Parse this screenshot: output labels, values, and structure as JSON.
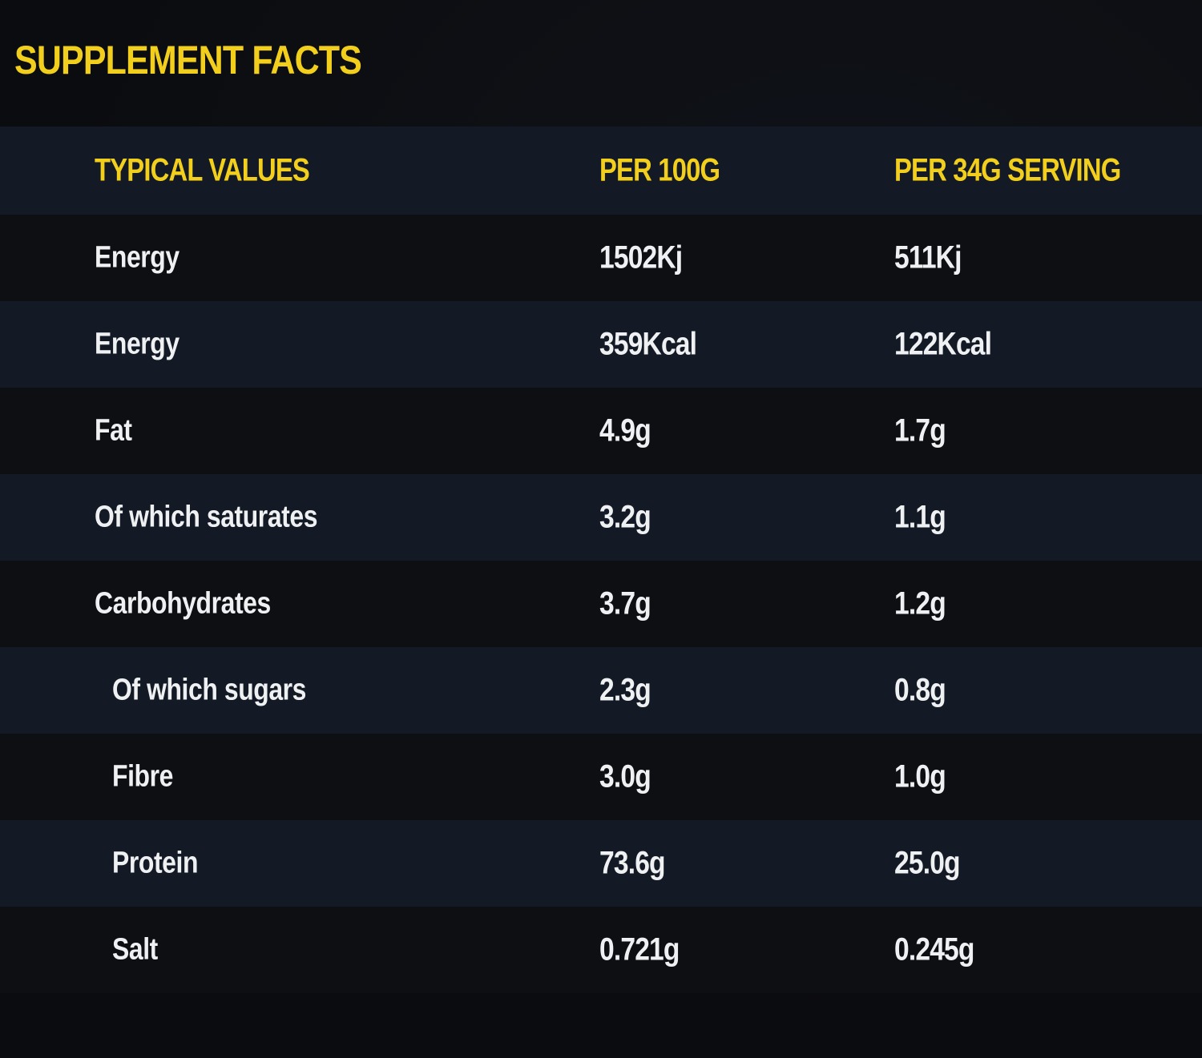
{
  "title": "SUPPLEMENT FACTS",
  "colors": {
    "accent": "#f2cf1d",
    "text": "#eef0f2",
    "band": "#131a26",
    "background": "#0c0d10"
  },
  "headers": {
    "label": "TYPICAL VALUES",
    "per100": "PER 100G",
    "perServing": "PER 34G SERVING"
  },
  "rows": [
    {
      "label": "Energy",
      "per100": "1502Kj",
      "perServing": "511Kj"
    },
    {
      "label": "Energy",
      "per100": "359Kcal",
      "perServing": "122Kcal"
    },
    {
      "label": "Fat",
      "per100": "4.9g",
      "perServing": "1.7g"
    },
    {
      "label": "Of which saturates",
      "per100": "3.2g",
      "perServing": "1.1g"
    },
    {
      "label": "Carbohydrates",
      "per100": "3.7g",
      "perServing": "1.2g"
    },
    {
      "label": "Of which sugars",
      "per100": "2.3g",
      "perServing": "0.8g"
    },
    {
      "label": "Fibre",
      "per100": "3.0g",
      "perServing": "1.0g"
    },
    {
      "label": "Protein",
      "per100": "73.6g",
      "perServing": "25.0g"
    },
    {
      "label": "Salt",
      "per100": "0.721g",
      "perServing": "0.245g"
    }
  ]
}
